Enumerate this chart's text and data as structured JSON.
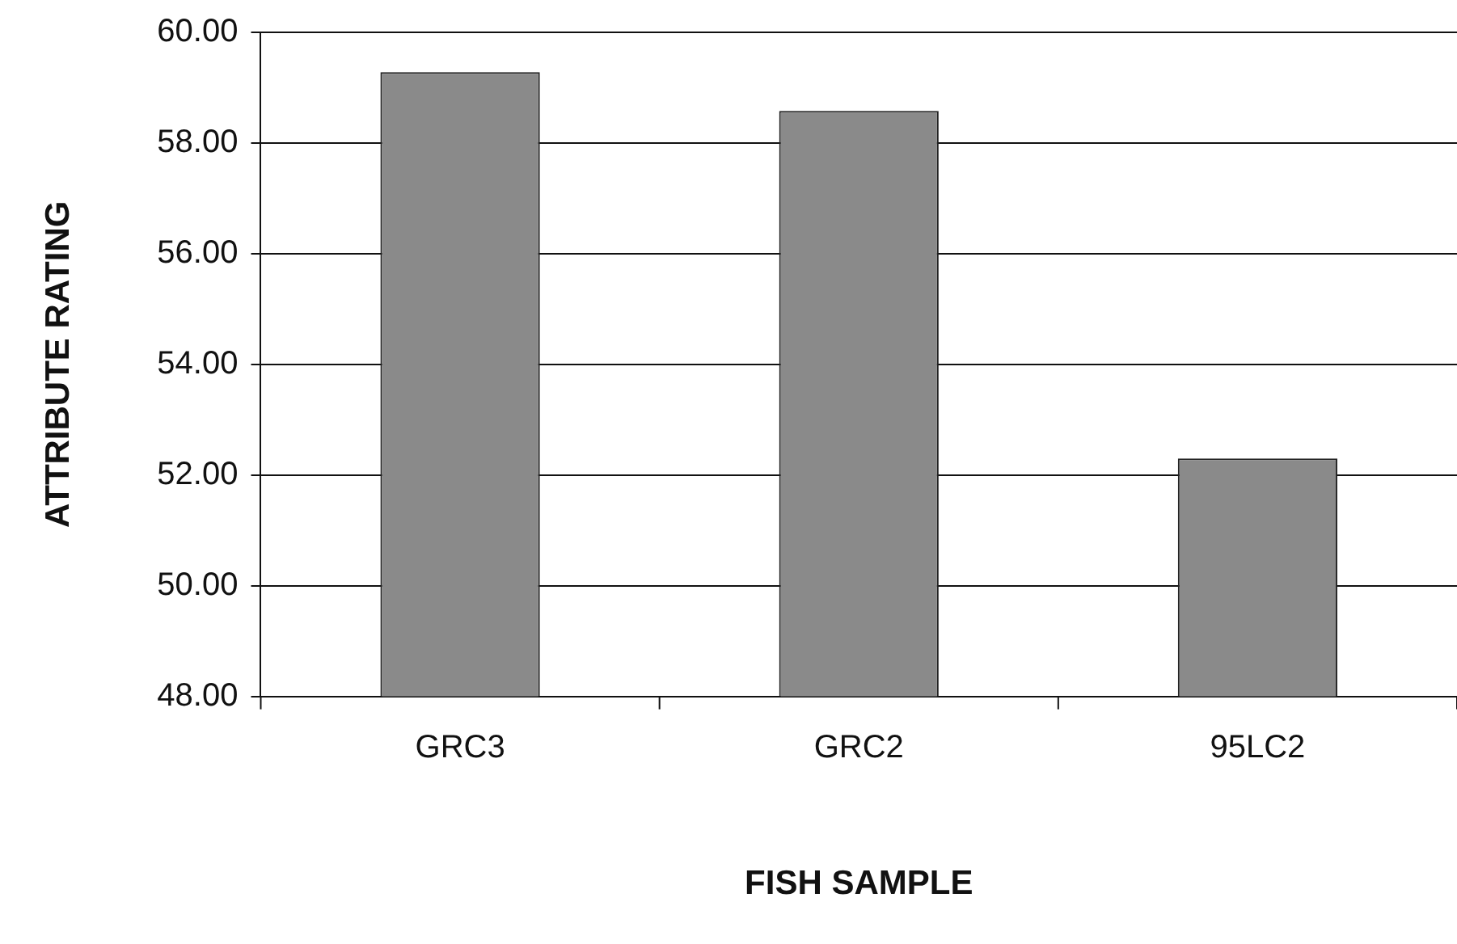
{
  "chart_data": {
    "type": "bar",
    "xlabel": "FISH SAMPLE",
    "ylabel": "ATTRIBUTE RATING",
    "categories": [
      "GRC3",
      "GRC2",
      "95LC2"
    ],
    "values": [
      59.28,
      58.58,
      52.3
    ],
    "color": "#8a8a8a",
    "ylim": [
      48,
      60
    ],
    "yticks": [
      {
        "value": 48,
        "label": "48.00"
      },
      {
        "value": 50,
        "label": "50.00"
      },
      {
        "value": 52,
        "label": "52.00"
      },
      {
        "value": 54,
        "label": "54.00"
      },
      {
        "value": 56,
        "label": "56.00"
      },
      {
        "value": 58,
        "label": "58.00"
      },
      {
        "value": 60,
        "label": "60.00"
      }
    ],
    "grid": "y"
  }
}
